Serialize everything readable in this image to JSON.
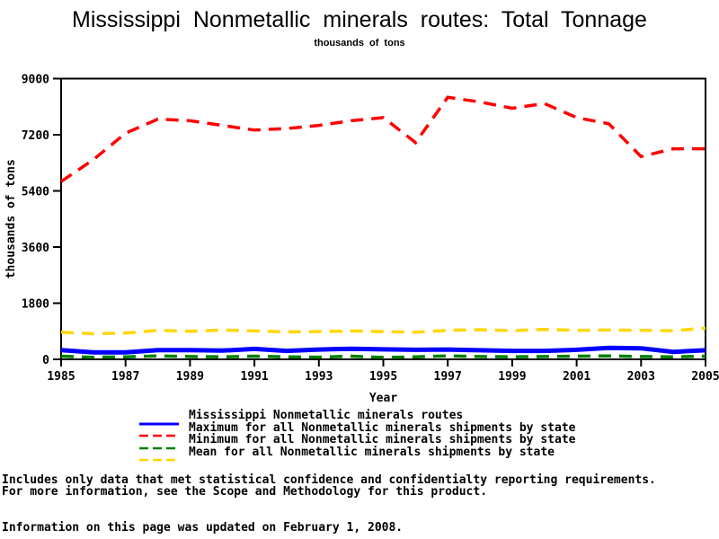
{
  "page": {
    "title": "Mississippi Nonmetallic minerals routes: Total Tonnage",
    "subtitle": "thousands of tons",
    "notes": [
      "Includes only data that met statistical confidence and confidentialty reporting requirements.",
      "For more information, see the Scope and Methodology for this product."
    ],
    "updated": "Information on this page was updated on February 1, 2008."
  },
  "chart_data": {
    "type": "line",
    "title": "Mississippi Nonmetallic minerals routes: Total Tonnage",
    "subtitle": "thousands of tons",
    "xlabel": "Year",
    "ylabel": "thousands of tons",
    "xlim": [
      1985,
      2005
    ],
    "ylim": [
      0,
      9000
    ],
    "xticks": [
      1985,
      1987,
      1989,
      1991,
      1993,
      1995,
      1997,
      1999,
      2001,
      2003,
      2005
    ],
    "yticks": [
      0,
      1800,
      3600,
      5400,
      7200,
      9000
    ],
    "grid": false,
    "legend_position": "bottom",
    "x": [
      1985,
      1986,
      1987,
      1988,
      1989,
      1990,
      1991,
      1992,
      1993,
      1994,
      1995,
      1996,
      1997,
      1998,
      1999,
      2000,
      2001,
      2002,
      2003,
      2004,
      2005
    ],
    "series": [
      {
        "name": "Mississippi Nonmetallic minerals routes",
        "color": "#0000ff",
        "style": "solid",
        "values": [
          295,
          225,
          225,
          295,
          295,
          280,
          335,
          270,
          315,
          340,
          320,
          305,
          315,
          290,
          270,
          270,
          305,
          365,
          355,
          240,
          290
        ]
      },
      {
        "name": "Maximum for all Nonmetallic minerals shipments by state",
        "color": "#ff0000",
        "style": "dashed",
        "values": [
          5700,
          6400,
          7250,
          7700,
          7650,
          7500,
          7350,
          7400,
          7500,
          7650,
          7750,
          6950,
          8400,
          8250,
          8050,
          8200,
          7750,
          7550,
          6500,
          6750,
          6750
        ]
      },
      {
        "name": "Minimum for all Nonmetallic minerals shipments by state",
        "color": "#008000",
        "style": "dashed",
        "values": [
          100,
          65,
          80,
          110,
          90,
          80,
          100,
          80,
          70,
          100,
          60,
          80,
          110,
          90,
          80,
          90,
          100,
          110,
          90,
          80,
          100
        ]
      },
      {
        "name": "Mean for all Nonmetallic minerals shipments by state",
        "color": "#ffd700",
        "style": "dashed",
        "values": [
          870,
          820,
          840,
          930,
          900,
          940,
          910,
          880,
          890,
          910,
          890,
          870,
          930,
          950,
          920,
          960,
          930,
          940,
          930,
          920,
          1000
        ]
      }
    ]
  }
}
